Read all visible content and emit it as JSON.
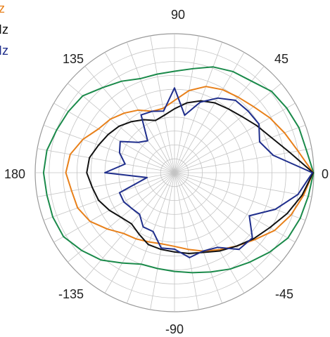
{
  "chart_data": {
    "type": "polar-line",
    "angle_unit": "degrees",
    "angle_ticks": [
      "90",
      "45",
      "0",
      "-45",
      "-90",
      "-135",
      "180",
      "135"
    ],
    "angle_tick_values": [
      90,
      45,
      0,
      -45,
      -90,
      -135,
      180,
      135
    ],
    "radial_range": [
      0,
      1
    ],
    "grid": {
      "rings": 10,
      "spokes_every_deg": 10
    },
    "legend": {
      "placement": "top-left",
      "items": [
        {
          "label": "z",
          "color": "#E8801A"
        },
        {
          "label": "Iz",
          "color": "#111111"
        },
        {
          "label": "Iz",
          "color": "#1F2E8C"
        }
      ]
    },
    "series": [
      {
        "color": "#1A8A4A",
        "theta": [
          0,
          10,
          20,
          30,
          40,
          50,
          60,
          70,
          80,
          90,
          100,
          110,
          120,
          130,
          140,
          150,
          160,
          170,
          180,
          190,
          200,
          210,
          220,
          230,
          240,
          250,
          260,
          270,
          280,
          290,
          300,
          310,
          320,
          330,
          340,
          350
        ],
        "r": [
          0.998,
          0.96,
          0.95,
          0.93,
          0.91,
          0.86,
          0.84,
          0.81,
          0.76,
          0.73,
          0.72,
          0.72,
          0.76,
          0.8,
          0.86,
          0.88,
          0.9,
          0.93,
          0.94,
          0.93,
          0.93,
          0.92,
          0.87,
          0.82,
          0.75,
          0.7,
          0.7,
          0.71,
          0.73,
          0.76,
          0.8,
          0.84,
          0.89,
          0.94,
          0.96,
          0.975
        ]
      },
      {
        "color": "#E8801A",
        "theta": [
          0,
          10,
          20,
          30,
          40,
          50,
          60,
          70,
          80,
          90,
          100,
          110,
          120,
          130,
          140,
          150,
          160,
          170,
          180,
          190,
          200,
          210,
          220,
          230,
          240,
          250,
          260,
          270,
          280,
          290,
          300,
          310,
          320,
          330,
          340,
          350
        ],
        "r": [
          0.995,
          0.9,
          0.84,
          0.79,
          0.74,
          0.71,
          0.69,
          0.66,
          0.6,
          0.52,
          0.47,
          0.47,
          0.52,
          0.56,
          0.6,
          0.63,
          0.7,
          0.76,
          0.78,
          0.75,
          0.74,
          0.7,
          0.63,
          0.57,
          0.55,
          0.53,
          0.52,
          0.53,
          0.56,
          0.6,
          0.64,
          0.69,
          0.75,
          0.83,
          0.89,
          0.94
        ]
      },
      {
        "color": "#111111",
        "theta": [
          0,
          10,
          20,
          30,
          40,
          50,
          60,
          70,
          80,
          90,
          100,
          110,
          120,
          130,
          140,
          150,
          160,
          170,
          180,
          190,
          200,
          210,
          220,
          230,
          240,
          250,
          260,
          270,
          280,
          290,
          300,
          310,
          320,
          330,
          340,
          350
        ],
        "r": [
          0.995,
          0.84,
          0.74,
          0.68,
          0.63,
          0.6,
          0.58,
          0.55,
          0.51,
          0.46,
          0.42,
          0.4,
          0.44,
          0.48,
          0.52,
          0.55,
          0.58,
          0.62,
          0.63,
          0.6,
          0.58,
          0.54,
          0.5,
          0.48,
          0.51,
          0.55,
          0.56,
          0.57,
          0.59,
          0.61,
          0.65,
          0.69,
          0.74,
          0.79,
          0.86,
          0.93
        ]
      },
      {
        "color": "#1F2E8C",
        "theta": [
          0,
          10,
          20,
          30,
          40,
          50,
          60,
          70,
          80,
          90,
          100,
          110,
          120,
          130,
          140,
          150,
          160,
          170,
          180,
          190,
          200,
          210,
          220,
          230,
          240,
          250,
          260,
          270,
          280,
          290,
          300,
          310,
          320,
          330,
          340,
          350
        ],
        "r": [
          0.99,
          0.72,
          0.65,
          0.7,
          0.69,
          0.68,
          0.62,
          0.54,
          0.42,
          0.61,
          0.45,
          0.47,
          0.48,
          0.3,
          0.34,
          0.45,
          0.42,
          0.36,
          0.5,
          0.2,
          0.42,
          0.42,
          0.4,
          0.39,
          0.45,
          0.45,
          0.55,
          0.55,
          0.62,
          0.6,
          0.62,
          0.72,
          0.73,
          0.62,
          0.77,
          0.9
        ]
      }
    ]
  }
}
